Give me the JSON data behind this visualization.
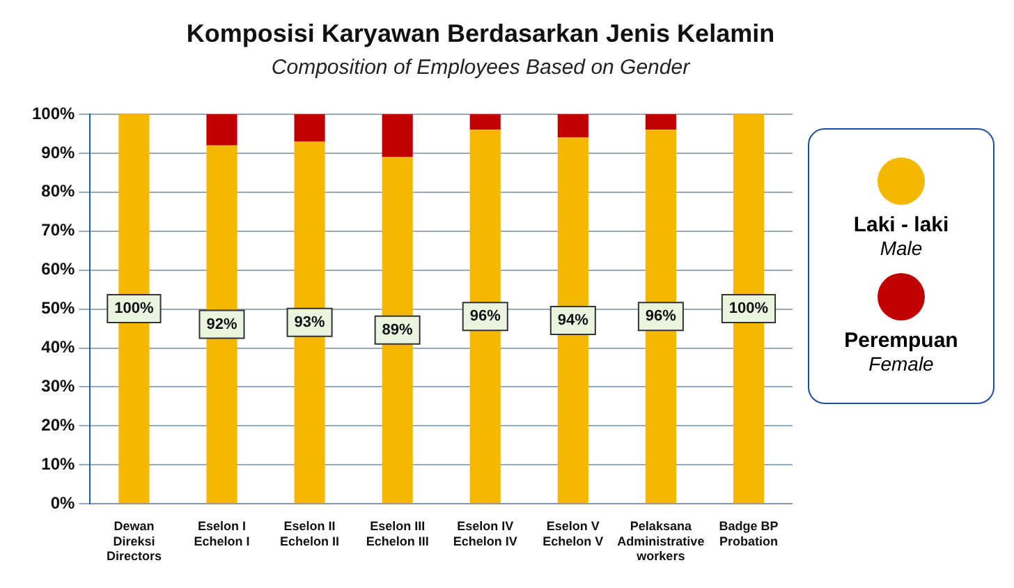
{
  "chart_data": {
    "type": "bar",
    "title": "Komposisi Karyawan Berdasarkan Jenis Kelamin",
    "subtitle": "Composition of Employees Based on Gender",
    "categories": [
      "Dewan\nDireksi\nDirectors",
      "Eselon I\nEchelon I",
      "Eselon II\nEchelon II",
      "Eselon III\nEchelon III",
      "Eselon IV\nEchelon IV",
      "Eselon V\nEchelon V",
      "Pelaksana\nAdministrative\nworkers",
      "Badge BP\nProbation"
    ],
    "stacked": true,
    "series": [
      {
        "name": "Laki - laki\nMale",
        "color": "#f5b800",
        "values": [
          100,
          92,
          93,
          89,
          96,
          94,
          96,
          100
        ],
        "value_labels": [
          "100%",
          "92%",
          "93%",
          "89%",
          "96%",
          "94%",
          "96%",
          "100%"
        ]
      },
      {
        "name": "Perempuan\nFemale",
        "color": "#c00000",
        "values": [
          0,
          8,
          7,
          11,
          4,
          6,
          4,
          0
        ]
      }
    ],
    "ylim": [
      0,
      100
    ],
    "yticks": [
      {
        "value": 0,
        "label": "0%"
      },
      {
        "value": 10,
        "label": "10%"
      },
      {
        "value": 20,
        "label": "20%"
      },
      {
        "value": 30,
        "label": "30%"
      },
      {
        "value": 40,
        "label": "40%"
      },
      {
        "value": 50,
        "label": "50%"
      },
      {
        "value": 60,
        "label": "60%"
      },
      {
        "value": 70,
        "label": "70%"
      },
      {
        "value": 80,
        "label": "80%"
      },
      {
        "value": 90,
        "label": "90%"
      },
      {
        "value": 100,
        "label": "100%"
      }
    ],
    "grid": "y",
    "legend": "right"
  }
}
